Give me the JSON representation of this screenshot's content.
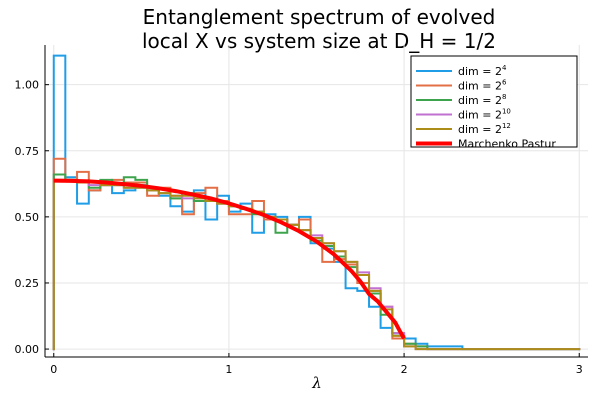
{
  "chart_data": {
    "type": "line",
    "title_line1": "Entanglement spectrum of evolved",
    "title_line2": "local X vs system size at D_H = 1/2",
    "xlabel": "λ",
    "ylabel": "",
    "xlim": [
      -0.05,
      3.05
    ],
    "ylim": [
      -0.03,
      1.15
    ],
    "xticks": [
      0,
      1,
      2,
      3
    ],
    "xtick_labels": [
      "0",
      "1",
      "2",
      "3"
    ],
    "yticks": [
      0,
      0.25,
      0.5,
      0.75,
      1.0
    ],
    "ytick_labels": [
      "0.00",
      "0.25",
      "0.50",
      "0.75",
      "1.00"
    ],
    "grid": true,
    "legend_position": "top-right",
    "series": [
      {
        "name": "dim = 2",
        "exp": "4",
        "color": "#1f9de6",
        "kind": "step",
        "width": 2,
        "edges": [
          0,
          0.066,
          0.133,
          0.2,
          0.266,
          0.333,
          0.4,
          0.466,
          0.533,
          0.6,
          0.666,
          0.733,
          0.8,
          0.866,
          0.933,
          1.0,
          1.066,
          1.133,
          1.2,
          1.266,
          1.333,
          1.4,
          1.466,
          1.533,
          1.6,
          1.666,
          1.733,
          1.8,
          1.866,
          1.933,
          2.0,
          2.066,
          2.133,
          2.2,
          2.266,
          2.333,
          2.4,
          2.466,
          3.0
        ],
        "values": [
          1.11,
          0.65,
          0.55,
          0.6,
          0.62,
          0.59,
          0.6,
          0.62,
          0.61,
          0.58,
          0.54,
          0.52,
          0.6,
          0.49,
          0.58,
          0.52,
          0.55,
          0.44,
          0.51,
          0.5,
          0.47,
          0.5,
          0.4,
          0.38,
          0.33,
          0.23,
          0.22,
          0.16,
          0.08,
          0.06,
          0.04,
          0.02,
          0.01,
          0.01,
          0.01,
          0.0,
          0.0,
          0.0
        ]
      },
      {
        "name": "dim = 2",
        "exp": "6",
        "color": "#e26f46",
        "kind": "step",
        "width": 2,
        "edges": [
          0,
          0.066,
          0.133,
          0.2,
          0.266,
          0.333,
          0.4,
          0.466,
          0.533,
          0.6,
          0.666,
          0.733,
          0.8,
          0.866,
          0.933,
          1.0,
          1.066,
          1.133,
          1.2,
          1.266,
          1.333,
          1.4,
          1.466,
          1.533,
          1.6,
          1.666,
          1.733,
          1.8,
          1.866,
          1.933,
          2.0,
          2.066,
          2.133,
          2.2,
          2.266,
          3.0
        ],
        "values": [
          0.72,
          0.64,
          0.67,
          0.6,
          0.62,
          0.64,
          0.63,
          0.63,
          0.58,
          0.61,
          0.57,
          0.51,
          0.59,
          0.61,
          0.56,
          0.51,
          0.51,
          0.56,
          0.49,
          0.49,
          0.47,
          0.49,
          0.42,
          0.33,
          0.34,
          0.32,
          0.25,
          0.22,
          0.16,
          0.04,
          0.02,
          0.01,
          0.0,
          0.0,
          0.0
        ]
      },
      {
        "name": "dim = 2",
        "exp": "8",
        "color": "#3da44d",
        "kind": "step",
        "width": 2,
        "edges": [
          0,
          0.066,
          0.133,
          0.2,
          0.266,
          0.333,
          0.4,
          0.466,
          0.533,
          0.6,
          0.666,
          0.733,
          0.8,
          0.866,
          0.933,
          1.0,
          1.066,
          1.133,
          1.2,
          1.266,
          1.333,
          1.4,
          1.466,
          1.533,
          1.6,
          1.666,
          1.733,
          1.8,
          1.866,
          1.933,
          2.0,
          2.066,
          2.133,
          2.2,
          3.0
        ],
        "values": [
          0.66,
          0.64,
          0.63,
          0.61,
          0.64,
          0.62,
          0.65,
          0.64,
          0.6,
          0.59,
          0.57,
          0.59,
          0.56,
          0.56,
          0.55,
          0.54,
          0.53,
          0.51,
          0.5,
          0.44,
          0.47,
          0.45,
          0.41,
          0.39,
          0.35,
          0.31,
          0.28,
          0.21,
          0.13,
          0.06,
          0.02,
          0.01,
          0.0,
          0.0
        ]
      },
      {
        "name": "dim = 2",
        "exp": "10",
        "color": "#c271d2",
        "kind": "step",
        "width": 2,
        "edges": [
          0,
          0.066,
          0.133,
          0.2,
          0.266,
          0.333,
          0.4,
          0.466,
          0.533,
          0.6,
          0.666,
          0.733,
          0.8,
          0.866,
          0.933,
          1.0,
          1.066,
          1.133,
          1.2,
          1.266,
          1.333,
          1.4,
          1.466,
          1.533,
          1.6,
          1.666,
          1.733,
          1.8,
          1.866,
          1.933,
          2.0,
          2.066,
          2.133,
          3.0
        ],
        "values": [
          0.64,
          0.64,
          0.63,
          0.62,
          0.62,
          0.62,
          0.61,
          0.61,
          0.6,
          0.59,
          0.58,
          0.57,
          0.57,
          0.56,
          0.55,
          0.54,
          0.53,
          0.52,
          0.5,
          0.49,
          0.47,
          0.45,
          0.43,
          0.4,
          0.37,
          0.33,
          0.29,
          0.23,
          0.16,
          0.06,
          0.01,
          0.0,
          0.0
        ]
      },
      {
        "name": "dim = 2",
        "exp": "12",
        "color": "#ac8d18",
        "kind": "step",
        "width": 2,
        "edges": [
          0,
          0.066,
          0.133,
          0.2,
          0.266,
          0.333,
          0.4,
          0.466,
          0.533,
          0.6,
          0.666,
          0.733,
          0.8,
          0.866,
          0.933,
          1.0,
          1.066,
          1.133,
          1.2,
          1.266,
          1.333,
          1.4,
          1.466,
          1.533,
          1.6,
          1.666,
          1.733,
          1.8,
          1.866,
          1.933,
          2.0,
          2.066,
          2.133,
          3.0
        ],
        "values": [
          0.64,
          0.64,
          0.63,
          0.63,
          0.62,
          0.62,
          0.61,
          0.61,
          0.6,
          0.59,
          0.58,
          0.58,
          0.57,
          0.56,
          0.55,
          0.54,
          0.53,
          0.52,
          0.5,
          0.49,
          0.47,
          0.45,
          0.42,
          0.4,
          0.37,
          0.33,
          0.28,
          0.22,
          0.15,
          0.05,
          0.01,
          0.0,
          0.0
        ]
      },
      {
        "name": "Marchenko Pastur",
        "exp": "",
        "color": "#ff0000",
        "kind": "line",
        "width": 4,
        "x": [
          0.0,
          0.1,
          0.2,
          0.3,
          0.4,
          0.5,
          0.6,
          0.7,
          0.8,
          0.9,
          1.0,
          1.1,
          1.2,
          1.3,
          1.4,
          1.5,
          1.6,
          1.7,
          1.75,
          1.8,
          1.85,
          1.9,
          1.95,
          1.98,
          2.0
        ],
        "y": [
          0.637,
          0.636,
          0.634,
          0.63,
          0.624,
          0.617,
          0.608,
          0.597,
          0.584,
          0.569,
          0.551,
          0.53,
          0.507,
          0.479,
          0.446,
          0.407,
          0.358,
          0.295,
          0.256,
          0.208,
          0.18,
          0.14,
          0.1,
          0.063,
          0.04
        ]
      }
    ]
  }
}
